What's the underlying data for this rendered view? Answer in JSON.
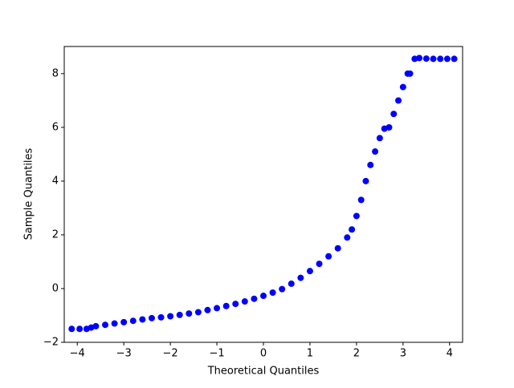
{
  "chart_data": {
    "type": "scatter",
    "x_label": "Theoretical Quantiles",
    "y_label": "Sample Quantiles",
    "series": [
      {
        "color": "#0000ff",
        "x": [
          -4.12,
          -3.95,
          -3.8,
          -3.7,
          -3.6,
          -3.4,
          -3.2,
          -3.0,
          -2.8,
          -2.6,
          -2.4,
          -2.2,
          -2.0,
          -1.8,
          -1.6,
          -1.4,
          -1.2,
          -1.0,
          -0.8,
          -0.6,
          -0.4,
          -0.2,
          0,
          0.2,
          0.4,
          0.6,
          0.8,
          1.0,
          1.2,
          1.4,
          1.6,
          1.8,
          1.9,
          2.0,
          2.1,
          2.2,
          2.3,
          2.4,
          2.5,
          2.6,
          2.7,
          2.8,
          2.9,
          3.0,
          3.1,
          3.15,
          3.25,
          3.35,
          3.5,
          3.65,
          3.8,
          3.95,
          4.1
        ],
        "values": [
          -1.5,
          -1.5,
          -1.5,
          -1.45,
          -1.4,
          -1.35,
          -1.3,
          -1.25,
          -1.2,
          -1.15,
          -1.1,
          -1.07,
          -1.03,
          -0.98,
          -0.93,
          -0.88,
          -0.8,
          -0.73,
          -0.65,
          -0.57,
          -0.48,
          -0.38,
          -0.27,
          -0.15,
          -0.02,
          0.18,
          0.4,
          0.65,
          0.92,
          1.2,
          1.5,
          1.9,
          2.2,
          2.7,
          3.3,
          4.0,
          4.6,
          5.1,
          5.6,
          5.95,
          6.0,
          6.5,
          7.0,
          7.5,
          8.0,
          8.0,
          8.55,
          8.58,
          8.56,
          8.55,
          8.55,
          8.55,
          8.55
        ]
      }
    ],
    "xlim": [
      -4.28,
      4.28
    ],
    "ylim": [
      -2,
      9.01
    ],
    "xticks": [
      {
        "value": -4,
        "label": "−4"
      },
      {
        "value": -3,
        "label": "−3"
      },
      {
        "value": -2,
        "label": "−2"
      },
      {
        "value": -1,
        "label": "−1"
      },
      0,
      1,
      2,
      3,
      4
    ],
    "yticks": [
      {
        "value": -2,
        "label": "−2"
      },
      0,
      2,
      4,
      6,
      8
    ],
    "grid": false
  }
}
